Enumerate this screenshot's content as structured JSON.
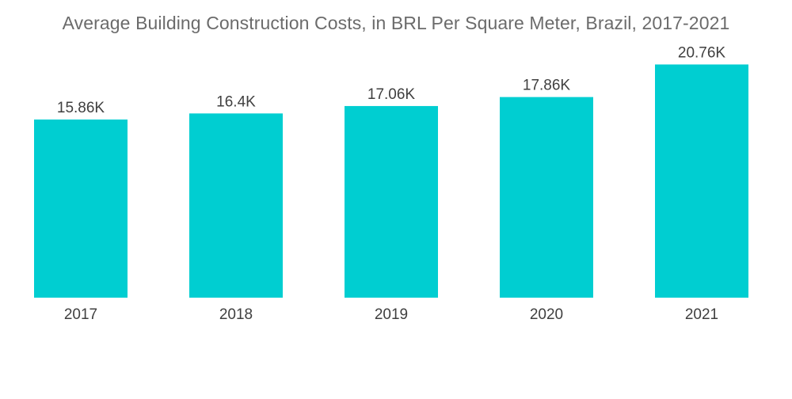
{
  "colors": {
    "bar": "#00ced1",
    "title": "#6b6b6b",
    "label": "#3f3f3f"
  },
  "chart_data": {
    "type": "bar",
    "title": "Average Building Construction Costs, in BRL Per Square Meter, Brazil, 2017-2021",
    "xlabel": "",
    "ylabel": "",
    "categories": [
      "2017",
      "2018",
      "2019",
      "2020",
      "2021"
    ],
    "values": [
      15860,
      16400,
      17060,
      17860,
      20760
    ],
    "data_labels": [
      "15.86K",
      "16.4K",
      "17.06K",
      "17.86K",
      "20.76K"
    ],
    "ylim": [
      0,
      26500
    ],
    "grid": false,
    "legend": "none"
  }
}
